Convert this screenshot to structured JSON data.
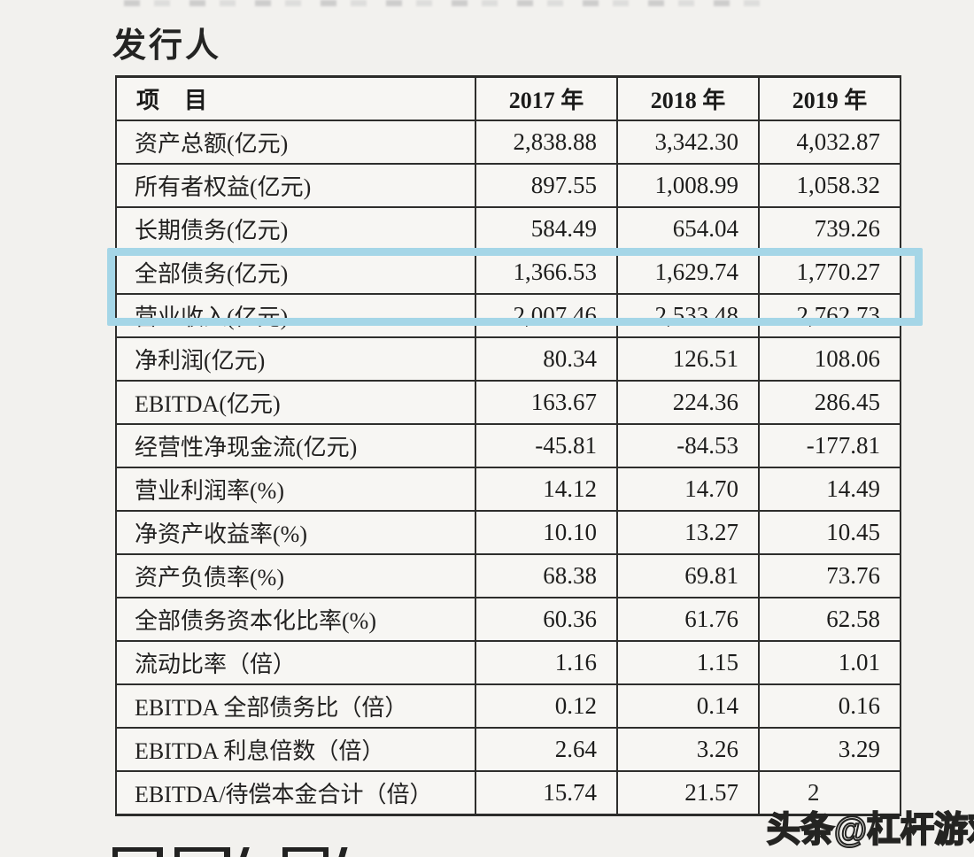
{
  "page": {
    "title": "发行人"
  },
  "watermark": {
    "text": "头条@杠杆游戏"
  },
  "highlight": {
    "color": "#a5d6e7",
    "highlighted_row_label": "全部债务(亿元)"
  },
  "table": {
    "columns": [
      "项　目",
      "2017 年",
      "2018 年",
      "2019 年"
    ],
    "rows": [
      {
        "label": "资产总额(亿元)",
        "values": [
          "2,838.88",
          "3,342.30",
          "4,032.87"
        ]
      },
      {
        "label": "所有者权益(亿元)",
        "values": [
          "897.55",
          "1,008.99",
          "1,058.32"
        ]
      },
      {
        "label": "长期债务(亿元)",
        "values": [
          "584.49",
          "654.04",
          "739.26"
        ]
      },
      {
        "label": "全部债务(亿元)",
        "values": [
          "1,366.53",
          "1,629.74",
          "1,770.27"
        ],
        "highlighted": true
      },
      {
        "label": "营业收入(亿元)",
        "values": [
          "2,007.46",
          "2,533.48",
          "2,762.73"
        ]
      },
      {
        "label": "净利润(亿元)",
        "values": [
          "80.34",
          "126.51",
          "108.06"
        ]
      },
      {
        "label": "EBITDA(亿元)",
        "values": [
          "163.67",
          "224.36",
          "286.45"
        ]
      },
      {
        "label": "经营性净现金流(亿元)",
        "values": [
          "-45.81",
          "-84.53",
          "-177.81"
        ]
      },
      {
        "label": "营业利润率(%)",
        "values": [
          "14.12",
          "14.70",
          "14.49"
        ]
      },
      {
        "label": "净资产收益率(%)",
        "values": [
          "10.10",
          "13.27",
          "10.45"
        ]
      },
      {
        "label": "资产负债率(%)",
        "values": [
          "68.38",
          "69.81",
          "73.76"
        ]
      },
      {
        "label": "全部债务资本化比率(%)",
        "values": [
          "60.36",
          "61.76",
          "62.58"
        ]
      },
      {
        "label": "流动比率（倍）",
        "values": [
          "1.16",
          "1.15",
          "1.01"
        ]
      },
      {
        "label": "EBITDA 全部债务比（倍）",
        "values": [
          "0.12",
          "0.14",
          "0.16"
        ]
      },
      {
        "label": "EBITDA 利息倍数（倍）",
        "values": [
          "2.64",
          "3.26",
          "3.29"
        ]
      },
      {
        "label": "EBITDA/待偿本金合计（倍）",
        "values": [
          "15.74",
          "21.57",
          ""
        ],
        "obscured_fragment": "2"
      }
    ]
  }
}
